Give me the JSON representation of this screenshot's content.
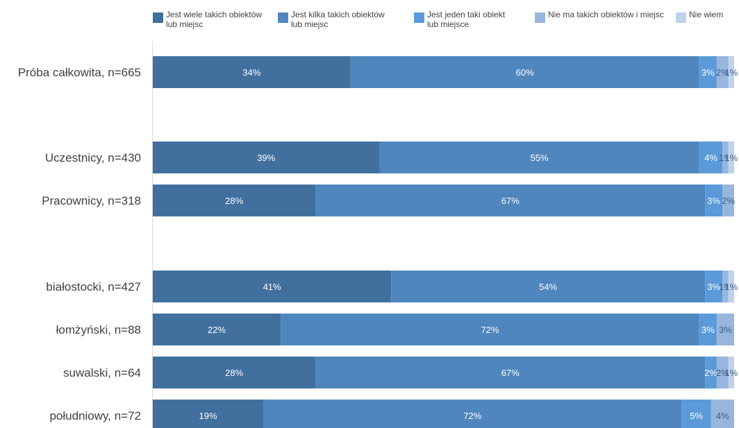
{
  "chart_data": {
    "type": "bar",
    "orientation": "horizontal",
    "stacked": "100%",
    "legend_position": "top",
    "grid": false,
    "series": [
      {
        "name": "Jest wiele takich obiektów lub miejsc",
        "color": "#41709f",
        "values": [
          34,
          39,
          28,
          41,
          22,
          28,
          19
        ],
        "labels": [
          "34%",
          "39%",
          "28%",
          "41%",
          "22%",
          "28%",
          "19%"
        ]
      },
      {
        "name": "Jest kilka takich obiektów lub miejsc",
        "color": "#4f86be",
        "values": [
          60,
          55,
          67,
          54,
          72,
          67,
          72
        ],
        "labels": [
          "60%",
          "55%",
          "67%",
          "54%",
          "72%",
          "67%",
          "72%"
        ]
      },
      {
        "name": "Jest jeden taki obiekt lub miejsce",
        "color": "#5b9ad9",
        "values": [
          3,
          4,
          3,
          3,
          3,
          2,
          5
        ],
        "labels": [
          "3%",
          "4%",
          "3%",
          "3%",
          "3%",
          "2%",
          "5%"
        ]
      },
      {
        "name": "Nie ma takich obiektów  i miejsc",
        "color": "#98b6dd",
        "values": [
          2,
          1,
          2,
          1,
          3,
          2,
          4
        ],
        "labels": [
          "2%",
          "1%",
          "2%",
          "1%",
          "3%",
          "2%",
          "4%"
        ]
      },
      {
        "name": "Nie wiem",
        "color": "#bfd2ec",
        "values": [
          1,
          1,
          0,
          1,
          0,
          1,
          0
        ],
        "labels": [
          "1%",
          "1%",
          "",
          "1%",
          "",
          "1%",
          ""
        ]
      }
    ],
    "legend_lines": [
      [
        "Jest wiele takich obiektów",
        "lub miejsc"
      ],
      [
        "Jest kilka takich obiektów",
        "lub miejsc"
      ],
      [
        "Jest jeden taki obiekt",
        "lub miejsce"
      ],
      [
        "Nie ma takich obiektów  i miejsc"
      ],
      [
        "Nie wiem"
      ]
    ],
    "categories": [
      "Próba całkowita, n=665",
      "Uczestnicy, n=430",
      "Pracownicy, n=318",
      "białostocki, n=427",
      "łomżyński, n=88",
      "suwalski, n=64",
      "południowy, n=72"
    ]
  }
}
